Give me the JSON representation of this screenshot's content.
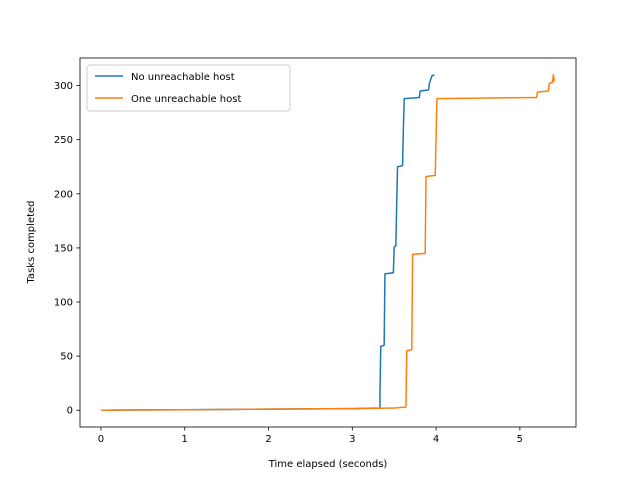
{
  "chart_data": {
    "type": "line",
    "title": "",
    "xlabel": "Time elapsed (seconds)",
    "ylabel": "Tasks completed",
    "xlim": [
      -0.25,
      5.67
    ],
    "ylim": [
      -15.5,
      325.5
    ],
    "xticks": [
      0,
      1,
      2,
      3,
      4,
      5
    ],
    "yticks": [
      0,
      50,
      100,
      150,
      200,
      250,
      300
    ],
    "grid": false,
    "legend_position": "upper left",
    "series": [
      {
        "name": "No unreachable host",
        "color": "#1f77b4",
        "points": [
          [
            0.0,
            0
          ],
          [
            1.0,
            0.5
          ],
          [
            2.0,
            1
          ],
          [
            3.0,
            1.5
          ],
          [
            3.33,
            2
          ],
          [
            3.33,
            15
          ],
          [
            3.34,
            59
          ],
          [
            3.38,
            60
          ],
          [
            3.39,
            126
          ],
          [
            3.49,
            127
          ],
          [
            3.5,
            151
          ],
          [
            3.52,
            152
          ],
          [
            3.53,
            190
          ],
          [
            3.54,
            225
          ],
          [
            3.6,
            226
          ],
          [
            3.61,
            262
          ],
          [
            3.62,
            288
          ],
          [
            3.8,
            289
          ],
          [
            3.81,
            295
          ],
          [
            3.91,
            296
          ],
          [
            3.92,
            302
          ],
          [
            3.95,
            309
          ],
          [
            3.98,
            310
          ]
        ]
      },
      {
        "name": "One unreachable host",
        "color": "#ff7f0e",
        "points": [
          [
            0.0,
            0
          ],
          [
            1.0,
            0.5
          ],
          [
            2.0,
            1
          ],
          [
            3.0,
            1.5
          ],
          [
            3.5,
            2
          ],
          [
            3.64,
            3
          ],
          [
            3.65,
            55
          ],
          [
            3.71,
            56
          ],
          [
            3.72,
            144
          ],
          [
            3.87,
            145
          ],
          [
            3.88,
            216
          ],
          [
            3.99,
            217
          ],
          [
            4.01,
            288
          ],
          [
            5.2,
            289
          ],
          [
            5.21,
            294
          ],
          [
            5.34,
            295
          ],
          [
            5.35,
            302
          ],
          [
            5.39,
            303
          ],
          [
            5.4,
            310
          ],
          [
            5.41,
            304
          ]
        ]
      }
    ]
  }
}
